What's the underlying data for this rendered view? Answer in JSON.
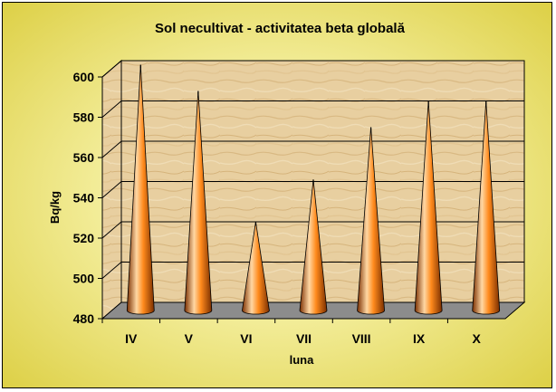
{
  "chart_data": {
    "type": "bar",
    "title": "Sol necultivat - activitatea beta globală",
    "xlabel": "luna",
    "ylabel": "Bq/kg",
    "categories": [
      "IV",
      "V",
      "VI",
      "VII",
      "VIII",
      "IX",
      "X"
    ],
    "values": [
      602,
      589,
      524,
      545,
      571,
      584,
      584
    ],
    "ylim": [
      480,
      600
    ],
    "yticks": [
      480,
      500,
      520,
      540,
      560,
      580,
      600
    ],
    "bar_shape": "cone",
    "grid": true,
    "legend": "none"
  },
  "colors": {
    "cone_light": "#ffd7a3",
    "cone_mid": "#ff8a1c",
    "cone_dark": "#7a2e00",
    "floor": "#8c8c8c",
    "gridline": "#000000",
    "frame_bg": "#f3ed9a"
  }
}
